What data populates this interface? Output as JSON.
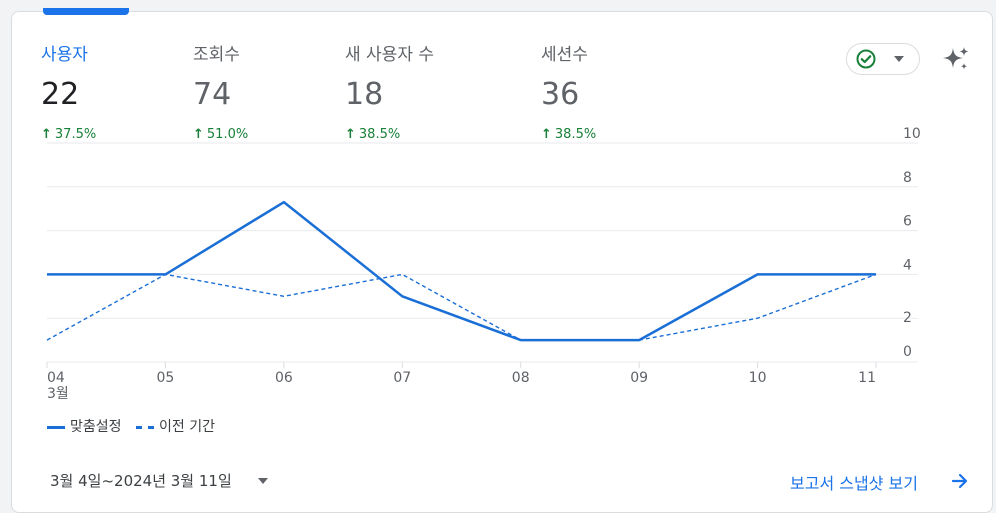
{
  "metrics": [
    {
      "label": "사용자",
      "value": "22",
      "change": "37.5%",
      "active": true
    },
    {
      "label": "조회수",
      "value": "74",
      "change": "51.0%",
      "active": false
    },
    {
      "label": "새 사용자 수",
      "value": "18",
      "change": "38.5%",
      "active": false
    },
    {
      "label": "세션수",
      "value": "36",
      "change": "38.5%",
      "active": false
    }
  ],
  "icons": {
    "change_arrow": "arrow-up-icon",
    "status": "check-circle-icon",
    "dropdown": "chevron-down-icon",
    "insights": "sparkle-icon",
    "link_arrow": "arrow-right-icon"
  },
  "colors": {
    "accent": "#1a73e8",
    "positive": "#188038",
    "series_custom": "#1a6fd6",
    "series_previous": "#1a6fd6"
  },
  "chart_data": {
    "type": "line",
    "x": [
      "04",
      "05",
      "06",
      "07",
      "08",
      "09",
      "10",
      "11"
    ],
    "x_sublabel": "3월",
    "y_ticks": [
      "0",
      "2",
      "4",
      "6",
      "8",
      "10"
    ],
    "ylim": [
      0,
      10
    ],
    "y_axis_position": "right",
    "grid": true,
    "legend_position": "bottom-left",
    "series": [
      {
        "name": "맞춤설정",
        "style": "solid",
        "values": [
          4,
          4,
          7.3,
          3,
          1,
          1,
          4,
          4
        ]
      },
      {
        "name": "이전 기간",
        "style": "dashed",
        "values": [
          1,
          4,
          3,
          4,
          1,
          1,
          2,
          4
        ]
      }
    ]
  },
  "footer": {
    "date_range": "3월 4일~2024년 3월 11일",
    "report_link": "보고서 스냅샷 보기"
  }
}
